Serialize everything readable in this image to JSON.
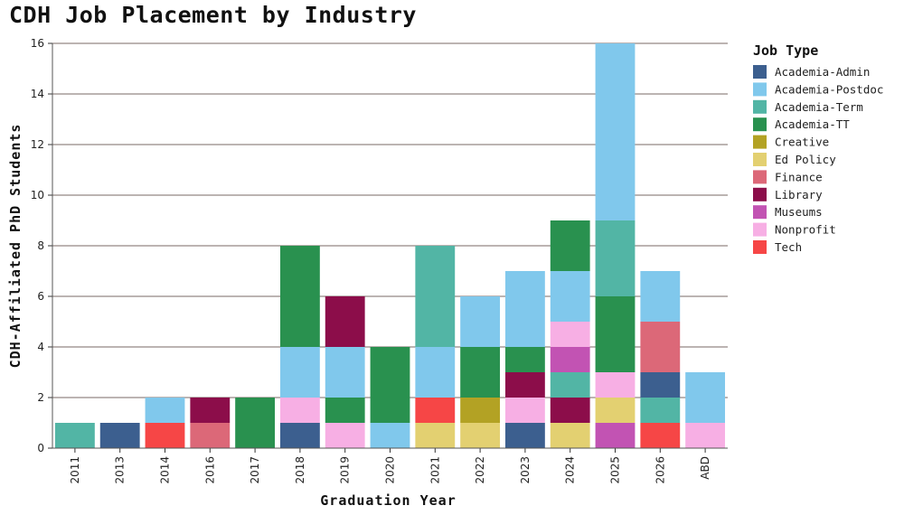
{
  "title": "CDH Job Placement by Industry",
  "chart_data": {
    "type": "bar",
    "stacked": true,
    "title": "CDH Job Placement by Industry",
    "xlabel": "Graduation Year",
    "ylabel": "CDH-Affiliated PhD Students",
    "ylim": [
      0,
      16
    ],
    "yticks": [
      "0",
      "2",
      "4",
      "6",
      "8",
      "10",
      "12",
      "14",
      "16"
    ],
    "grid": "horizontal",
    "legend_title": "Job Type",
    "legend_position": "right",
    "categories": [
      "2011",
      "2013",
      "2014",
      "2016",
      "2017",
      "2018",
      "2019",
      "2020",
      "2021",
      "2022",
      "2023",
      "2024",
      "2025",
      "2026",
      "ABD"
    ],
    "series": [
      {
        "name": "Academia-Admin",
        "color": "#3c5f8f",
        "values": [
          0,
          1,
          0,
          0,
          0,
          1,
          0,
          0,
          0,
          0,
          1,
          0,
          0,
          1,
          0
        ]
      },
      {
        "name": "Academia-Postdoc",
        "color": "#80c8ec",
        "values": [
          0,
          0,
          1,
          0,
          0,
          2,
          2,
          1,
          2,
          2,
          3,
          2,
          7,
          2,
          2
        ]
      },
      {
        "name": "Academia-Term",
        "color": "#52b5a5",
        "values": [
          1,
          0,
          0,
          0,
          0,
          0,
          0,
          0,
          4,
          0,
          0,
          1,
          3,
          1,
          0
        ]
      },
      {
        "name": "Academia-TT",
        "color": "#29914f",
        "values": [
          0,
          0,
          0,
          0,
          2,
          4,
          1,
          3,
          0,
          2,
          1,
          2,
          3,
          0,
          0
        ]
      },
      {
        "name": "Creative",
        "color": "#b3a224",
        "values": [
          0,
          0,
          0,
          0,
          0,
          0,
          0,
          0,
          0,
          1,
          0,
          0,
          0,
          0,
          0
        ]
      },
      {
        "name": "Ed Policy",
        "color": "#e3d071",
        "values": [
          0,
          0,
          0,
          0,
          0,
          0,
          0,
          0,
          1,
          1,
          0,
          1,
          1,
          0,
          0
        ]
      },
      {
        "name": "Finance",
        "color": "#dc6878",
        "values": [
          0,
          0,
          0,
          1,
          0,
          0,
          0,
          0,
          0,
          0,
          0,
          0,
          0,
          2,
          0
        ]
      },
      {
        "name": "Library",
        "color": "#8c0d4a",
        "values": [
          0,
          0,
          0,
          1,
          0,
          0,
          2,
          0,
          0,
          0,
          1,
          1,
          0,
          0,
          0
        ]
      },
      {
        "name": "Museums",
        "color": "#c253b3",
        "values": [
          0,
          0,
          0,
          0,
          0,
          0,
          0,
          0,
          0,
          0,
          0,
          1,
          1,
          0,
          0
        ]
      },
      {
        "name": "Nonprofit",
        "color": "#f7afe4",
        "values": [
          0,
          0,
          0,
          0,
          0,
          1,
          1,
          0,
          0,
          0,
          1,
          1,
          1,
          0,
          1
        ]
      },
      {
        "name": "Tech",
        "color": "#f64646",
        "values": [
          0,
          0,
          1,
          0,
          0,
          0,
          0,
          0,
          1,
          0,
          0,
          0,
          0,
          1,
          0
        ]
      }
    ],
    "stacks": {
      "2011": [
        "Academia-Term"
      ],
      "2013": [
        "Academia-Admin"
      ],
      "2014": [
        "Tech",
        "Academia-Postdoc"
      ],
      "2016": [
        "Finance",
        "Library"
      ],
      "2017": [
        "Academia-TT"
      ],
      "2018": [
        "Academia-Admin",
        "Nonprofit",
        "Academia-Postdoc",
        "Academia-TT"
      ],
      "2019": [
        "Nonprofit",
        "Academia-TT",
        "Academia-Postdoc",
        "Library"
      ],
      "2020": [
        "Academia-Postdoc",
        "Academia-TT"
      ],
      "2021": [
        "Ed Policy",
        "Tech",
        "Academia-Postdoc",
        "Academia-Term"
      ],
      "2022": [
        "Ed Policy",
        "Creative",
        "Academia-TT",
        "Academia-Postdoc"
      ],
      "2023": [
        "Academia-Admin",
        "Nonprofit",
        "Library",
        "Academia-TT",
        "Academia-Postdoc"
      ],
      "2024": [
        "Ed Policy",
        "Library",
        "Academia-Term",
        "Museums",
        "Nonprofit",
        "Academia-Postdoc",
        "Academia-TT"
      ],
      "2025": [
        "Museums",
        "Ed Policy",
        "Nonprofit",
        "Academia-TT",
        "Academia-Term",
        "Academia-Postdoc"
      ],
      "2026": [
        "Tech",
        "Academia-Term",
        "Academia-Admin",
        "Finance",
        "Academia-Postdoc"
      ],
      "ABD": [
        "Nonprofit",
        "Academia-Postdoc"
      ]
    }
  }
}
